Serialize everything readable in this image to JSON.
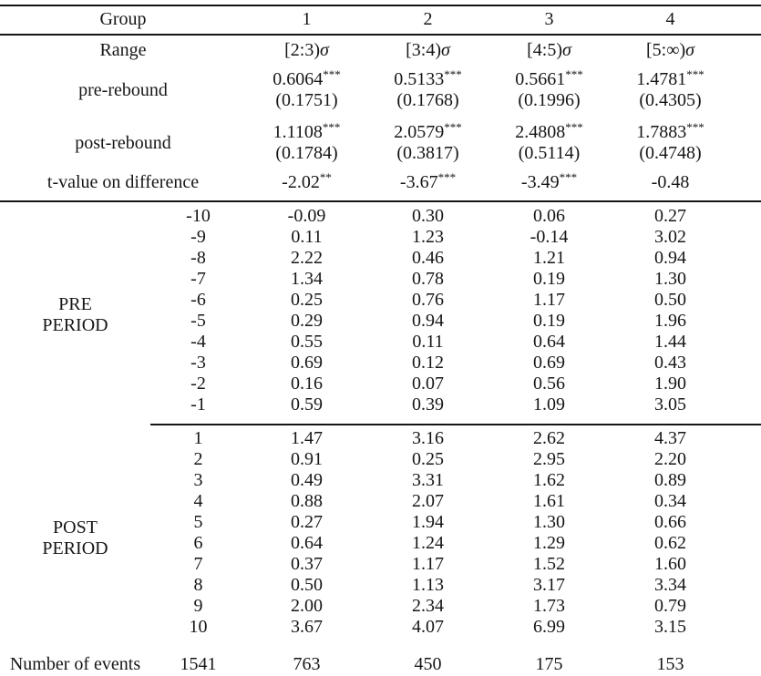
{
  "table": {
    "header": {
      "label": "Group",
      "groups": [
        "1",
        "2",
        "3",
        "4"
      ]
    },
    "range": {
      "label": "Range",
      "cells": [
        {
          "interval": "[2:3)",
          "sigma": "σ"
        },
        {
          "interval": "[3:4)",
          "sigma": "σ"
        },
        {
          "interval": "[4:5)",
          "sigma": "σ"
        },
        {
          "interval": "[5:∞)",
          "sigma": "σ"
        }
      ]
    },
    "pre_rebound": {
      "label": "pre-rebound",
      "cells": [
        {
          "value": "0.6064",
          "stars": "***",
          "se": "(0.1751)"
        },
        {
          "value": "0.5133",
          "stars": "***",
          "se": "(0.1768)"
        },
        {
          "value": "0.5661",
          "stars": "***",
          "se": "(0.1996)"
        },
        {
          "value": "1.4781",
          "stars": "***",
          "se": "(0.4305)"
        }
      ]
    },
    "post_rebound": {
      "label": "post-rebound",
      "cells": [
        {
          "value": "1.1108",
          "stars": "***",
          "se": "(0.1784)"
        },
        {
          "value": "2.0579",
          "stars": "***",
          "se": "(0.3817)"
        },
        {
          "value": "2.4808",
          "stars": "***",
          "se": "(0.5114)"
        },
        {
          "value": "1.7883",
          "stars": "***",
          "se": "(0.4748)"
        }
      ]
    },
    "t_value": {
      "label": "t-value on difference",
      "cells": [
        {
          "value": "-2.02",
          "stars": "**"
        },
        {
          "value": "-3.67",
          "stars": "***"
        },
        {
          "value": "-3.49",
          "stars": "***"
        },
        {
          "value": "-0.48",
          "stars": ""
        }
      ]
    },
    "pre_period": {
      "label_line1": "PRE",
      "label_line2": "PERIOD",
      "rows": [
        {
          "t": "-10",
          "values": [
            "-0.09",
            "0.30",
            "0.06",
            "0.27"
          ]
        },
        {
          "t": "-9",
          "values": [
            "0.11",
            "1.23",
            "-0.14",
            "3.02"
          ]
        },
        {
          "t": "-8",
          "values": [
            "2.22",
            "0.46",
            "1.21",
            "0.94"
          ]
        },
        {
          "t": "-7",
          "values": [
            "1.34",
            "0.78",
            "0.19",
            "1.30"
          ]
        },
        {
          "t": "-6",
          "values": [
            "0.25",
            "0.76",
            "1.17",
            "0.50"
          ]
        },
        {
          "t": "-5",
          "values": [
            "0.29",
            "0.94",
            "0.19",
            "1.96"
          ]
        },
        {
          "t": "-4",
          "values": [
            "0.55",
            "0.11",
            "0.64",
            "1.44"
          ]
        },
        {
          "t": "-3",
          "values": [
            "0.69",
            "0.12",
            "0.69",
            "0.43"
          ]
        },
        {
          "t": "-2",
          "values": [
            "0.16",
            "0.07",
            "0.56",
            "1.90"
          ]
        },
        {
          "t": "-1",
          "values": [
            "0.59",
            "0.39",
            "1.09",
            "3.05"
          ]
        }
      ]
    },
    "post_period": {
      "label_line1": "POST",
      "label_line2": "PERIOD",
      "rows": [
        {
          "t": "1",
          "values": [
            "1.47",
            "3.16",
            "2.62",
            "4.37"
          ]
        },
        {
          "t": "2",
          "values": [
            "0.91",
            "0.25",
            "2.95",
            "2.20"
          ]
        },
        {
          "t": "3",
          "values": [
            "0.49",
            "3.31",
            "1.62",
            "0.89"
          ]
        },
        {
          "t": "4",
          "values": [
            "0.88",
            "2.07",
            "1.61",
            "0.34"
          ]
        },
        {
          "t": "5",
          "values": [
            "0.27",
            "1.94",
            "1.30",
            "0.66"
          ]
        },
        {
          "t": "6",
          "values": [
            "0.64",
            "1.24",
            "1.29",
            "0.62"
          ]
        },
        {
          "t": "7",
          "values": [
            "0.37",
            "1.17",
            "1.52",
            "1.60"
          ]
        },
        {
          "t": "8",
          "values": [
            "0.50",
            "1.13",
            "3.17",
            "3.34"
          ]
        },
        {
          "t": "9",
          "values": [
            "2.00",
            "2.34",
            "1.73",
            "0.79"
          ]
        },
        {
          "t": "10",
          "values": [
            "3.67",
            "4.07",
            "6.99",
            "3.15"
          ]
        }
      ]
    },
    "footer": {
      "label": "Number of events",
      "total": "1541",
      "values": [
        "763",
        "450",
        "175",
        "153"
      ]
    }
  }
}
